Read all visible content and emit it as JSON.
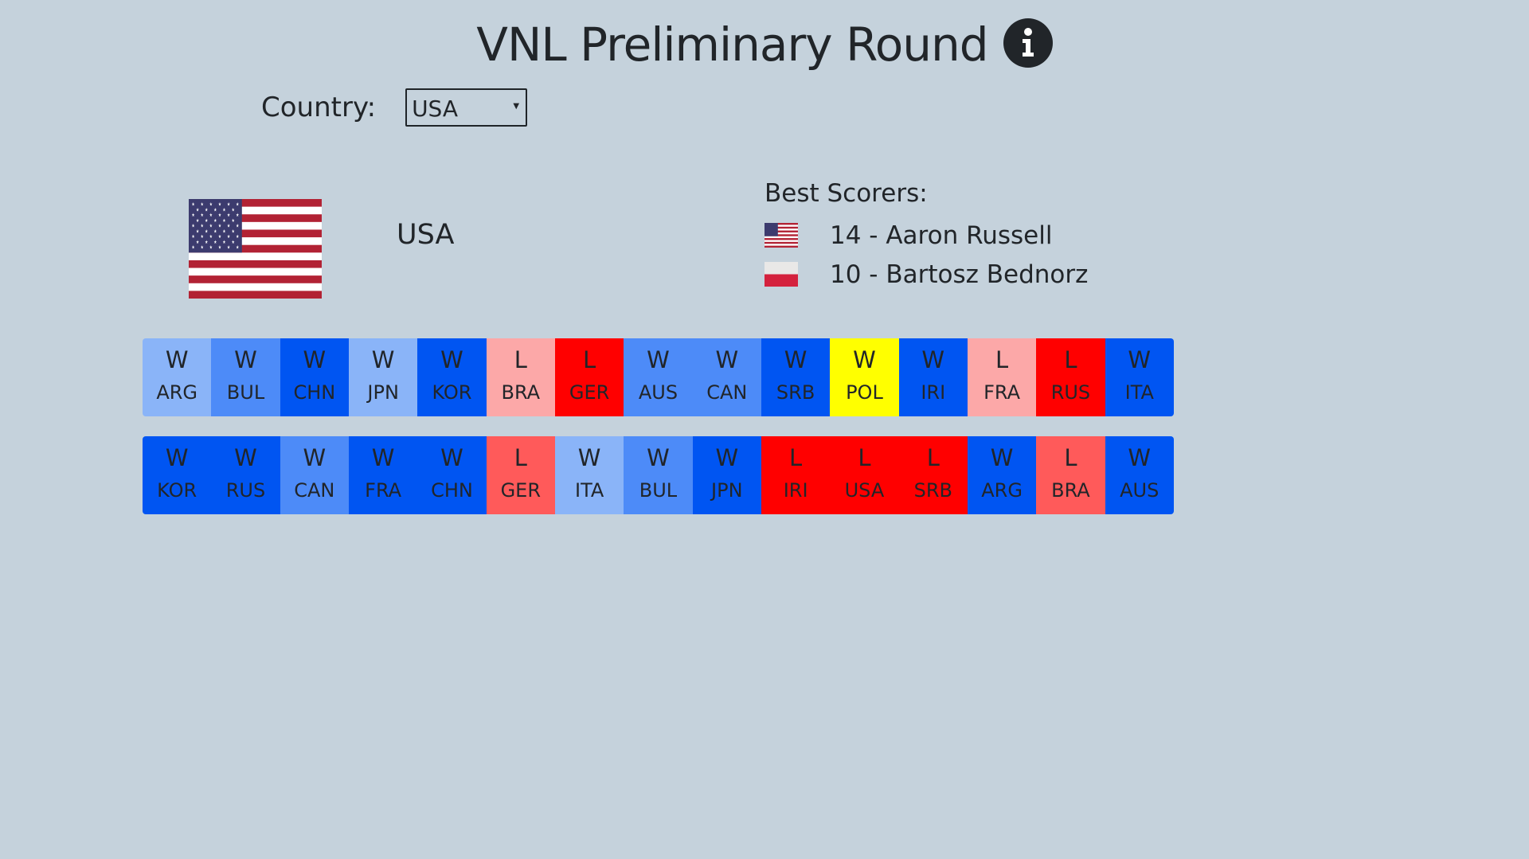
{
  "header": {
    "title": "VNL Preliminary Round",
    "info_icon": "info-circle-icon"
  },
  "filter": {
    "label": "Country:",
    "selected": "USA"
  },
  "team": {
    "name": "USA",
    "flag_icon": "usa-flag-icon"
  },
  "scorers": {
    "title": "Best Scorers:",
    "items": [
      {
        "text": "14 - Aaron Russell",
        "flag_icon": "usa-flag-icon"
      },
      {
        "text": "10 - Bartosz Bednorz",
        "flag_icon": "poland-flag-icon"
      }
    ]
  },
  "matches": {
    "row1": [
      {
        "result": "W",
        "opponent": "ARG",
        "color": "#8ab4f8"
      },
      {
        "result": "W",
        "opponent": "BUL",
        "color": "#4d8bf8"
      },
      {
        "result": "W",
        "opponent": "CHN",
        "color": "#0055f2"
      },
      {
        "result": "W",
        "opponent": "JPN",
        "color": "#8ab4f8"
      },
      {
        "result": "W",
        "opponent": "KOR",
        "color": "#0055f2"
      },
      {
        "result": "L",
        "opponent": "BRA",
        "color": "#fca8a8"
      },
      {
        "result": "L",
        "opponent": "GER",
        "color": "#ff0000"
      },
      {
        "result": "W",
        "opponent": "AUS",
        "color": "#4d8bf8"
      },
      {
        "result": "W",
        "opponent": "CAN",
        "color": "#4d8bf8"
      },
      {
        "result": "W",
        "opponent": "SRB",
        "color": "#0055f2"
      },
      {
        "result": "W",
        "opponent": "POL",
        "color": "#ffff00"
      },
      {
        "result": "W",
        "opponent": "IRI",
        "color": "#0055f2"
      },
      {
        "result": "L",
        "opponent": "FRA",
        "color": "#fca8a8"
      },
      {
        "result": "L",
        "opponent": "RUS",
        "color": "#ff0000"
      },
      {
        "result": "W",
        "opponent": "ITA",
        "color": "#0055f2"
      }
    ],
    "row2": [
      {
        "result": "W",
        "opponent": "KOR",
        "color": "#0055f2"
      },
      {
        "result": "W",
        "opponent": "RUS",
        "color": "#0055f2"
      },
      {
        "result": "W",
        "opponent": "CAN",
        "color": "#4d8bf8"
      },
      {
        "result": "W",
        "opponent": "FRA",
        "color": "#0055f2"
      },
      {
        "result": "W",
        "opponent": "CHN",
        "color": "#0055f2"
      },
      {
        "result": "L",
        "opponent": "GER",
        "color": "#ff5a5a"
      },
      {
        "result": "W",
        "opponent": "ITA",
        "color": "#8ab4f8"
      },
      {
        "result": "W",
        "opponent": "BUL",
        "color": "#4d8bf8"
      },
      {
        "result": "W",
        "opponent": "JPN",
        "color": "#0055f2"
      },
      {
        "result": "L",
        "opponent": "IRI",
        "color": "#ff0000"
      },
      {
        "result": "L",
        "opponent": "USA",
        "color": "#ff0000"
      },
      {
        "result": "L",
        "opponent": "SRB",
        "color": "#ff0000"
      },
      {
        "result": "W",
        "opponent": "ARG",
        "color": "#0055f2"
      },
      {
        "result": "L",
        "opponent": "BRA",
        "color": "#ff5a5a"
      },
      {
        "result": "W",
        "opponent": "AUS",
        "color": "#0055f2"
      }
    ]
  }
}
